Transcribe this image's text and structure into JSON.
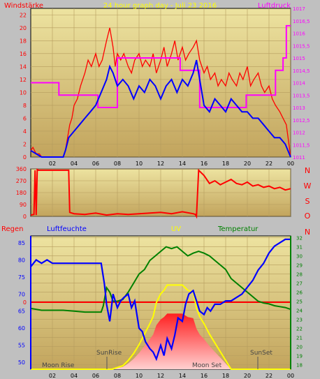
{
  "chart_data": [
    {
      "type": "line",
      "title": "24 hour graph day - Juli 23 2016",
      "left_label": "Windstärke",
      "right_label": "Luftdruck",
      "x_ticks": [
        "02",
        "04",
        "06",
        "08",
        "10",
        "12",
        "14",
        "16",
        "18",
        "20",
        "22",
        "00"
      ],
      "y_left_ticks": [
        "0",
        "2",
        "4",
        "6",
        "8",
        "10",
        "12",
        "14",
        "16",
        "18",
        "20",
        "22"
      ],
      "y_left_range": [
        0,
        23
      ],
      "y_right_ticks": [
        "1011",
        "1011,5",
        "1012",
        "1012,5",
        "1013",
        "1013,5",
        "1014",
        "1014,5",
        "1015",
        "1015,5",
        "1016",
        "1016,5",
        "1017"
      ],
      "y_right_range": [
        1011,
        1017
      ],
      "series": [
        {
          "name": "wind_gust",
          "color": "#ff0000",
          "x": [
            0,
            0.2,
            0.5,
            0.8,
            1,
            1.5,
            2,
            2.5,
            3,
            3.2,
            3.4,
            3.6,
            3.8,
            4,
            4.3,
            4.6,
            5,
            5.3,
            5.6,
            6,
            6.3,
            6.6,
            7,
            7.3,
            7.6,
            7.8,
            8,
            8.3,
            8.6,
            9,
            9.3,
            9.6,
            10,
            10.3,
            10.6,
            11,
            11.3,
            11.6,
            12,
            12.3,
            12.6,
            13,
            13.3,
            13.6,
            14,
            14.3,
            14.6,
            15,
            15.3,
            15.6,
            16,
            16.3,
            16.6,
            17,
            17.3,
            17.6,
            18,
            18.3,
            18.6,
            19,
            19.3,
            19.6,
            20,
            20.3,
            20.6,
            21,
            21.3,
            21.6,
            22,
            22.3,
            22.6,
            23,
            23.3,
            23.6,
            24
          ],
          "y": [
            1,
            1.5,
            0.5,
            0.5,
            0,
            0,
            0,
            0,
            0,
            1,
            3,
            5,
            6,
            8,
            9,
            11,
            13,
            15,
            14,
            16,
            14,
            15,
            18,
            20,
            17,
            14,
            16,
            15,
            16,
            14,
            13,
            15,
            16,
            14,
            15,
            14,
            16,
            13,
            15,
            17,
            14,
            16,
            18,
            15,
            17,
            15,
            16,
            17,
            18,
            15,
            13,
            14,
            12,
            13,
            11,
            12,
            11,
            13,
            12,
            11,
            13,
            12,
            14,
            11,
            12,
            13,
            11,
            10,
            11,
            9,
            8,
            7,
            6,
            5,
            0
          ]
        },
        {
          "name": "wind_avg",
          "color": "#0000ff",
          "x": [
            0,
            0.5,
            1,
            2,
            3,
            3.2,
            3.5,
            4,
            4.5,
            5,
            5.5,
            6,
            6.5,
            7,
            7.3,
            7.6,
            8,
            8.5,
            9,
            9.5,
            10,
            10.5,
            11,
            11.5,
            12,
            12.5,
            13,
            13.5,
            14,
            14.5,
            15,
            15.3,
            15.6,
            16,
            16.5,
            17,
            17.5,
            18,
            18.5,
            19,
            19.5,
            20,
            20.5,
            21,
            21.5,
            22,
            22.5,
            23,
            23.5,
            24
          ],
          "y": [
            1,
            0.5,
            0,
            0,
            0,
            1,
            3,
            4,
            5,
            6,
            7,
            8,
            10,
            12,
            14,
            13,
            11,
            12,
            11,
            9,
            11,
            10,
            12,
            11,
            9,
            11,
            12,
            10,
            12,
            11,
            13,
            15,
            12,
            8,
            7,
            9,
            8,
            7,
            9,
            8,
            7,
            7,
            6,
            6,
            5,
            4,
            3,
            3,
            2,
            0
          ]
        },
        {
          "name": "pressure",
          "color": "#ff00ff",
          "x": [
            0,
            2,
            2.6,
            2.6,
            6.2,
            6.2,
            8,
            8,
            13.8,
            13.8,
            15.6,
            15.6,
            19.9,
            19.9,
            22.6,
            22.6,
            23.3,
            23.3,
            23.6,
            23.6,
            24
          ],
          "y": [
            1014,
            1014,
            1014,
            1013.5,
            1013.5,
            1013,
            1013,
            1015,
            1015,
            1014.5,
            1014.5,
            1013,
            1013,
            1013.5,
            1013.5,
            1014.5,
            1014.5,
            1015,
            1015,
            1016.3,
            1016.3
          ]
        }
      ]
    },
    {
      "type": "line",
      "y_ticks": [
        "0",
        "90",
        "180",
        "270",
        "360"
      ],
      "y_range": [
        0,
        360
      ],
      "right_labels": [
        "N",
        "W",
        "S",
        "O",
        "N"
      ],
      "series": [
        {
          "name": "wind_direction",
          "color": "#ff0000",
          "x": [
            0,
            0.3,
            0.4,
            0.5,
            0.6,
            0.7,
            3.4,
            3.5,
            3.6,
            4,
            5,
            6,
            7,
            8,
            9,
            10,
            11,
            12,
            13,
            14,
            15,
            15.2,
            15.3,
            15.5,
            16,
            16.5,
            17,
            17.5,
            18,
            18.5,
            19,
            19.5,
            20,
            20.5,
            21,
            21.5,
            22,
            22.5,
            23,
            23.5,
            24
          ],
          "y": [
            10,
            15,
            350,
            10,
            355,
            350,
            350,
            350,
            30,
            20,
            15,
            25,
            10,
            20,
            15,
            20,
            25,
            30,
            20,
            35,
            20,
            15,
            0,
            350,
            310,
            250,
            270,
            240,
            260,
            280,
            250,
            240,
            260,
            230,
            240,
            220,
            230,
            210,
            220,
            200,
            210
          ]
        }
      ]
    },
    {
      "type": "line",
      "left_label": "Regen",
      "humidity_label": "Luftfeuchte",
      "uv_label": "UV",
      "temp_label": "Temperatur",
      "x_ticks": [
        "02",
        "04",
        "06",
        "08",
        "10",
        "12",
        "14",
        "16",
        "18",
        "20",
        "22",
        "00"
      ],
      "y_humidity_ticks": [
        "50",
        "55",
        "60",
        "65",
        "70",
        "75",
        "80",
        "85"
      ],
      "y_humidity_range": [
        48,
        87
      ],
      "rain_tick": "0",
      "y_temp_ticks": [
        "18",
        "19",
        "20",
        "21",
        "22",
        "23",
        "24",
        "25",
        "26",
        "27",
        "28",
        "29",
        "30",
        "31",
        "32"
      ],
      "y_temp_range": [
        17.5,
        32.2
      ],
      "annotations": [
        "SunRise",
        "SunSet",
        "Moon Rise",
        "Moon Set"
      ],
      "series": [
        {
          "name": "humidity",
          "color": "#0000ff",
          "x": [
            0,
            0.5,
            1,
            1.5,
            2,
            3,
            4,
            5,
            6,
            6.5,
            6.8,
            7,
            7.3,
            7.6,
            8,
            8.3,
            8.6,
            9,
            9.3,
            9.6,
            10,
            10.3,
            10.6,
            11,
            11.3,
            11.6,
            12,
            12.3,
            12.6,
            13,
            13.3,
            13.6,
            14,
            14.3,
            14.6,
            15,
            15.3,
            15.6,
            16,
            16.3,
            16.6,
            17,
            17.5,
            18,
            18.5,
            19,
            19.5,
            20,
            20.5,
            21,
            21.5,
            22,
            22.5,
            23,
            23.5,
            24
          ],
          "y": [
            78,
            80,
            79,
            80,
            79,
            79,
            79,
            79,
            79,
            79,
            73,
            67,
            62,
            70,
            66,
            68,
            69,
            70,
            66,
            68,
            60,
            59,
            56,
            54,
            53,
            51,
            55,
            52,
            57,
            54,
            58,
            63,
            62,
            67,
            70,
            71,
            68,
            65,
            64,
            66,
            65,
            67,
            67,
            68,
            68,
            69,
            70,
            72,
            74,
            77,
            79,
            82,
            84,
            85,
            86,
            86
          ]
        },
        {
          "name": "temperature",
          "color": "#008000",
          "x": [
            0,
            0.5,
            1,
            2,
            3,
            4,
            5,
            6,
            6.5,
            6.7,
            7,
            7.3,
            7.6,
            8,
            8.5,
            9,
            9.5,
            10,
            10.5,
            11,
            11.5,
            12,
            12.5,
            13,
            13.5,
            14,
            14.5,
            15,
            15.5,
            16,
            16.5,
            17,
            17.5,
            18,
            18.5,
            19,
            19.5,
            20,
            20.5,
            21,
            21.5,
            22,
            22.5,
            23,
            23.5,
            24
          ],
          "y": [
            24.2,
            24.1,
            24,
            24,
            24,
            23.9,
            23.8,
            23.8,
            23.8,
            24.5,
            26.5,
            26,
            25,
            25,
            25.2,
            26,
            27,
            28,
            28.5,
            29.5,
            30,
            30.5,
            31,
            30.8,
            31,
            30.5,
            30,
            30.3,
            30.5,
            30.3,
            30,
            29.5,
            29,
            28.5,
            27.5,
            27,
            26.5,
            26,
            25.5,
            25,
            24.8,
            24.7,
            24.5,
            24.4,
            24.3,
            24.1
          ]
        },
        {
          "name": "uv",
          "color": "#ffff00",
          "x": [
            0,
            7.5,
            8,
            8.5,
            9,
            9.5,
            10,
            10.5,
            11,
            11.3,
            11.6,
            12,
            12.3,
            12.6,
            13,
            13.5,
            14,
            14.5,
            15,
            15.3,
            15.6,
            16,
            16.5,
            17,
            17.5,
            18,
            18.5,
            24
          ],
          "y": [
            0,
            0,
            0.1,
            0.2,
            0.5,
            0.9,
            1.4,
            2,
            2.6,
            3,
            3.8,
            4.3,
            4.5,
            4.8,
            4.8,
            4.8,
            4.8,
            4.5,
            4.4,
            3.5,
            3,
            2.6,
            2,
            1.5,
            1,
            0.5,
            0,
            0
          ]
        },
        {
          "name": "rain",
          "color": "#ff0000",
          "x": [
            0,
            24
          ],
          "y": [
            0,
            0
          ]
        }
      ]
    }
  ]
}
